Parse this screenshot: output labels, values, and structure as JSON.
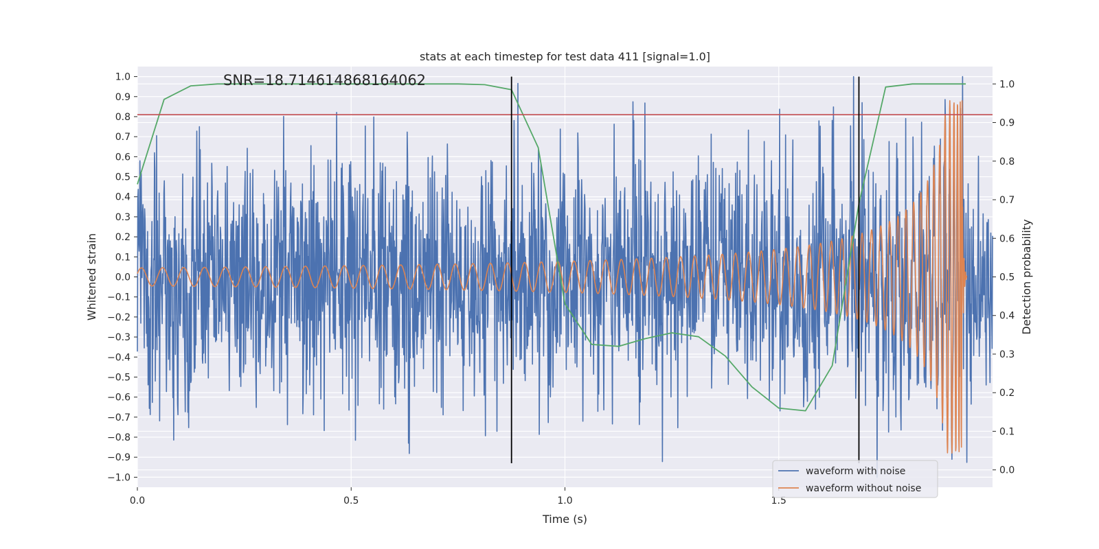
{
  "chart_data": {
    "type": "line",
    "title": "stats at each timestep for test data 411 [signal=1.0]",
    "xlabel": "Time (s)",
    "ylabel": "Whitened strain",
    "y2label": "Detection probability",
    "annotation": "SNR=18.714614868164062",
    "xlim": [
      0.0,
      2.0
    ],
    "ylim": [
      -1.05,
      1.05
    ],
    "y2lim": [
      -0.045,
      1.045
    ],
    "xticks": [
      0.0,
      0.5,
      1.0,
      1.5
    ],
    "xtick_labels": [
      "0.0",
      "0.5",
      "1.0",
      "1.5"
    ],
    "yticks": [
      -1.0,
      -0.9,
      -0.8,
      -0.7,
      -0.6,
      -0.5,
      -0.4,
      -0.3,
      -0.2,
      -0.1,
      0.0,
      0.1,
      0.2,
      0.3,
      0.4,
      0.5,
      0.6,
      0.7,
      0.8,
      0.9,
      1.0
    ],
    "ytick_labels": [
      "−1.0",
      "−0.9",
      "−0.8",
      "−0.7",
      "−0.6",
      "−0.5",
      "−0.4",
      "−0.3",
      "−0.2",
      "−0.1",
      "0.0",
      "0.1",
      "0.2",
      "0.3",
      "0.4",
      "0.5",
      "0.6",
      "0.7",
      "0.8",
      "0.9",
      "1.0"
    ],
    "y2ticks": [
      0.0,
      0.1,
      0.2,
      0.3,
      0.4,
      0.5,
      0.6,
      0.7,
      0.8,
      0.9,
      1.0
    ],
    "y2tick_labels": [
      "0.0",
      "0.1",
      "0.2",
      "0.3",
      "0.4",
      "0.5",
      "0.6",
      "0.7",
      "0.8",
      "0.9",
      "1.0"
    ],
    "grid": true,
    "legend_position": "lower-right",
    "series": [
      {
        "name": "waveform with noise",
        "color": "#4c72b0",
        "axis": "left",
        "style": "noise",
        "t_range": [
          0.0,
          2.0
        ],
        "amplitude_envelope": 0.3,
        "notable_peaks": [
          {
            "x": 0.89,
            "y": 1.0
          },
          {
            "x": 1.93,
            "y": 0.9
          },
          {
            "x": 1.94,
            "y": -0.93
          },
          {
            "x": 1.73,
            "y": -0.9
          }
        ]
      },
      {
        "name": "waveform without noise",
        "color": "#dd8452",
        "axis": "left",
        "style": "chirp",
        "t_range": [
          0.0,
          1.94
        ],
        "merger_time": 1.93,
        "max_amplitude": 0.88,
        "initial_amplitude": 0.045,
        "initial_frequency_hz": 20
      },
      {
        "name": "",
        "color": "#55a868",
        "axis": "right",
        "style": "line",
        "x": [
          0.0,
          0.0625,
          0.125,
          0.1875,
          0.25,
          0.3125,
          0.375,
          0.4375,
          0.5,
          0.5625,
          0.625,
          0.6875,
          0.75,
          0.8125,
          0.875,
          0.9375,
          1.0,
          1.0625,
          1.125,
          1.1875,
          1.25,
          1.3125,
          1.375,
          1.4375,
          1.5,
          1.5625,
          1.625,
          1.6875,
          1.75,
          1.8125,
          1.875,
          1.9375
        ],
        "y": [
          0.74,
          0.96,
          0.995,
          1.0,
          1.0,
          1.0,
          1.0,
          1.0,
          1.0,
          1.0,
          1.0,
          1.0,
          1.0,
          0.998,
          0.985,
          0.835,
          0.43,
          0.325,
          0.32,
          0.34,
          0.355,
          0.345,
          0.295,
          0.215,
          0.16,
          0.153,
          0.27,
          0.69,
          0.992,
          1.0,
          1.0,
          1.0
        ]
      }
    ],
    "hlines": [
      {
        "y": 0.81,
        "color": "#c44e52",
        "axis": "left"
      }
    ],
    "vlines": [
      {
        "x": 0.875,
        "ymin": -0.93,
        "ymax": 1.0,
        "color": "#000000"
      },
      {
        "x": 1.6875,
        "ymin": -0.93,
        "ymax": 1.0,
        "color": "#000000"
      }
    ]
  }
}
